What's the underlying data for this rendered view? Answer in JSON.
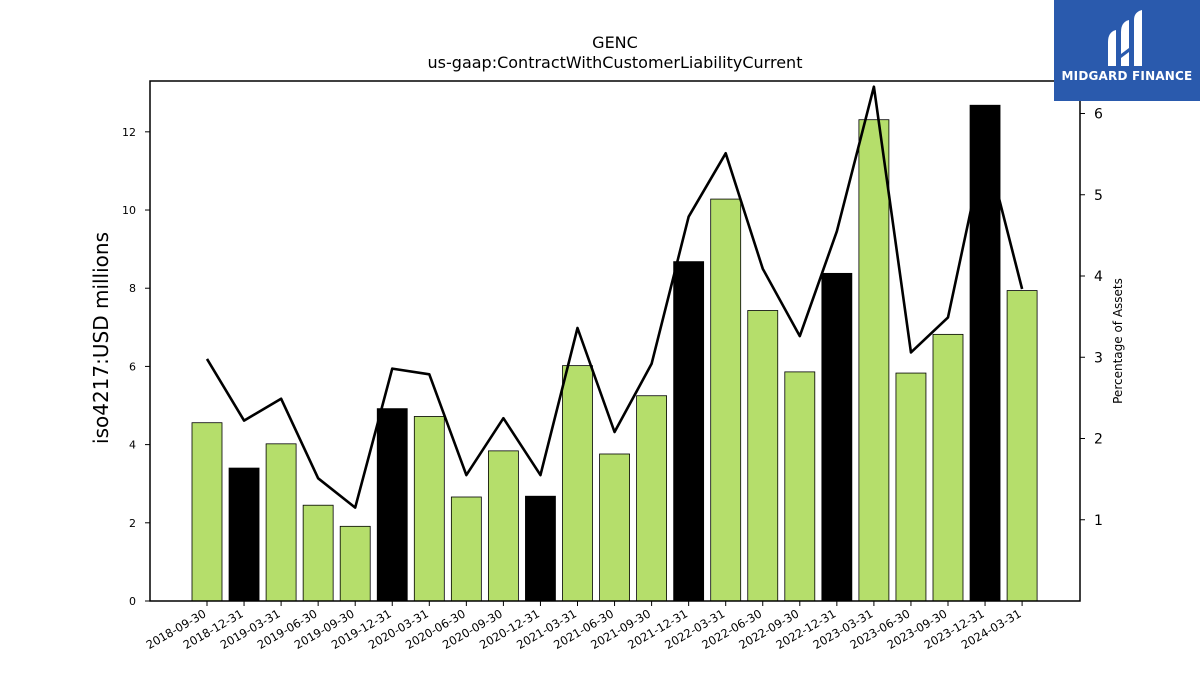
{
  "header": {
    "title": "GENC",
    "subtitle": "us-gaap:ContractWithCustomerLiabilityCurrent"
  },
  "logo": {
    "text": "MIDGARD FINANCE",
    "icon": "midgard-logo-icon",
    "background": "#2a5aad"
  },
  "chart_data": {
    "type": "bar",
    "title": "GENC",
    "subtitle": "us-gaap:ContractWithCustomerLiabilityCurrent",
    "ylabel": "iso4217:USD  millions",
    "y2label": "Percentage of Assets",
    "ylim": [
      0,
      13.3
    ],
    "y2lim": [
      0.0,
      6.4
    ],
    "yticks": [
      0,
      2,
      4,
      6,
      8,
      10,
      12
    ],
    "y2ticks": [
      1,
      2,
      3,
      4,
      5,
      6
    ],
    "grid": false,
    "colors": {
      "quarter": "#b5de6b",
      "year_end": "#000000",
      "line": "#000000"
    },
    "categories": [
      "2018-09-30",
      "2018-12-31",
      "2019-03-31",
      "2019-06-30",
      "2019-09-30",
      "2019-12-31",
      "2020-03-31",
      "2020-06-30",
      "2020-09-30",
      "2020-12-31",
      "2021-03-31",
      "2021-06-30",
      "2021-09-30",
      "2021-12-31",
      "2022-03-31",
      "2022-06-30",
      "2022-09-30",
      "2022-12-31",
      "2023-03-31",
      "2023-06-30",
      "2023-09-30",
      "2023-12-31",
      "2024-03-31"
    ],
    "series": [
      {
        "type": "bar",
        "axis": "left",
        "values": [
          4.56,
          3.4,
          4.02,
          2.45,
          1.91,
          4.92,
          4.72,
          2.66,
          3.84,
          2.68,
          6.02,
          3.76,
          5.25,
          8.68,
          10.28,
          7.43,
          5.86,
          8.38,
          12.31,
          5.83,
          6.82,
          12.68,
          7.94
        ],
        "year_end": [
          false,
          true,
          false,
          false,
          false,
          true,
          false,
          false,
          false,
          true,
          false,
          false,
          false,
          true,
          false,
          false,
          false,
          true,
          false,
          false,
          false,
          true,
          false
        ]
      },
      {
        "type": "line",
        "axis": "right",
        "values": [
          2.98,
          2.22,
          2.49,
          1.51,
          1.15,
          2.86,
          2.79,
          1.55,
          2.25,
          1.55,
          3.36,
          2.08,
          2.92,
          4.73,
          5.51,
          4.09,
          3.26,
          4.55,
          6.33,
          3.06,
          3.49,
          5.63,
          3.84
        ]
      }
    ]
  }
}
